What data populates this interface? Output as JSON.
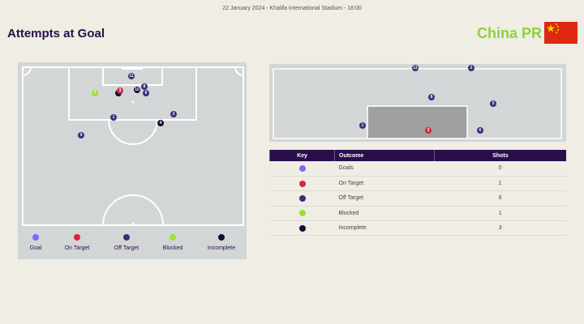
{
  "header": {
    "subtitle": "22 January 2024 - Khalifa International Stadium - 18:00",
    "title": "Attempts at Goal",
    "team": "China PR",
    "flag_icon": "china-flag-icon"
  },
  "colors": {
    "goals": "#7b6cf0",
    "on_target": "#d7263d",
    "off_target": "#3b2d78",
    "blocked": "#9be03a",
    "incomplete": "#1a0a3a",
    "header_bg": "#2a0e4a",
    "team": "#8fd23a"
  },
  "legend": [
    {
      "label": "Goal",
      "key": "goals"
    },
    {
      "label": "On Target",
      "key": "on_target"
    },
    {
      "label": "Off Target",
      "key": "off_target"
    },
    {
      "label": "Blocked",
      "key": "blocked"
    },
    {
      "label": "Incomplete",
      "key": "incomplete"
    }
  ],
  "table": {
    "headers": [
      "Key",
      "Outcome",
      "Shots"
    ],
    "rows": [
      {
        "key": "goals",
        "outcome": "Goals",
        "shots": "0"
      },
      {
        "key": "on_target",
        "outcome": "On Target",
        "shots": "1"
      },
      {
        "key": "off_target",
        "outcome": "Off Target",
        "shots": "6"
      },
      {
        "key": "blocked",
        "outcome": "Blocked",
        "shots": "1"
      },
      {
        "key": "incomplete",
        "outcome": "Incomplete",
        "shots": "3"
      }
    ]
  },
  "pitch_shots": [
    {
      "n": "11",
      "outcome": "off_target"
    },
    {
      "n": "",
      "outcome": "incomplete"
    },
    {
      "n": "3",
      "outcome": "on_target"
    },
    {
      "n": "10",
      "outcome": "incomplete"
    },
    {
      "n": "8",
      "outcome": "off_target"
    },
    {
      "n": "6",
      "outcome": "off_target"
    },
    {
      "n": "7",
      "outcome": "blocked"
    },
    {
      "n": "1",
      "outcome": "off_target"
    },
    {
      "n": "2",
      "outcome": "off_target"
    },
    {
      "n": "4",
      "outcome": "incomplete"
    },
    {
      "n": "9",
      "outcome": "off_target"
    }
  ],
  "goal_shots": [
    {
      "n": "11",
      "outcome": "off_target"
    },
    {
      "n": "2",
      "outcome": "off_target"
    },
    {
      "n": "8",
      "outcome": "off_target"
    },
    {
      "n": "5",
      "outcome": "off_target"
    },
    {
      "n": "1",
      "outcome": "off_target"
    },
    {
      "n": "3",
      "outcome": "on_target"
    },
    {
      "n": "6",
      "outcome": "off_target"
    }
  ]
}
